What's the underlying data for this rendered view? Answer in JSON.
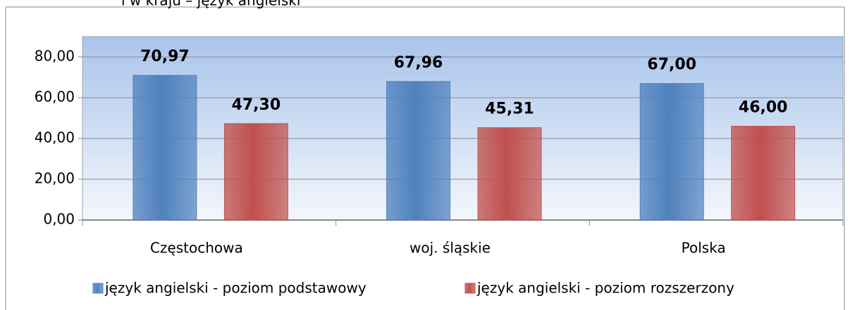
{
  "chart_data": {
    "type": "bar",
    "title": "i w kraju – język angielski",
    "categories": [
      "Częstochowa",
      "woj. śląskie",
      "Polska"
    ],
    "series": [
      {
        "name": "język angielski - poziom podstawowy",
        "color": "#4f81bd",
        "values": [
          70.97,
          67.96,
          67.0
        ],
        "value_labels": [
          "70,97",
          "67,96",
          "67,00"
        ]
      },
      {
        "name": "język angielski - poziom rozszerzony",
        "color": "#c0504d",
        "values": [
          47.3,
          45.31,
          46.0
        ],
        "value_labels": [
          "47,30",
          "45,31",
          "46,00"
        ]
      }
    ],
    "ylim": [
      0,
      90
    ],
    "yticks": [
      {
        "value": 0,
        "label": "0,00"
      },
      {
        "value": 20,
        "label": "20,00"
      },
      {
        "value": 40,
        "label": "40,00"
      },
      {
        "value": 60,
        "label": "60,00"
      },
      {
        "value": 80,
        "label": "80,00"
      }
    ],
    "grid": true,
    "legend": "bottom"
  }
}
